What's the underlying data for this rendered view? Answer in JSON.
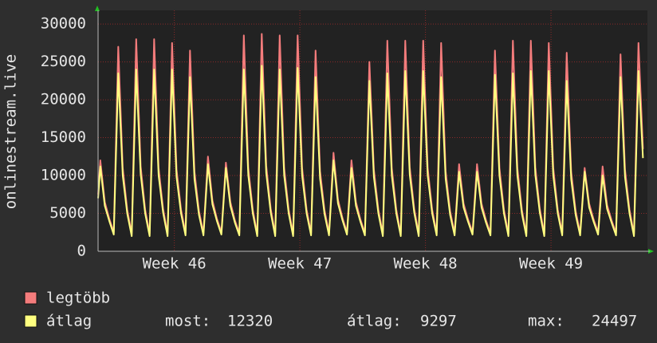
{
  "chart_data": {
    "type": "line",
    "y_label": "onlinestream.live",
    "x": [
      0,
      3,
      9,
      15,
      21,
      27,
      33,
      39,
      45,
      51,
      57,
      63,
      69,
      75,
      81,
      87,
      93,
      99,
      105,
      111,
      117,
      123,
      129,
      135,
      141,
      147,
      153,
      159,
      165,
      171,
      177,
      183,
      189,
      195,
      201,
      207,
      213,
      219,
      225,
      231,
      237,
      243,
      249,
      255,
      261,
      267,
      273,
      279,
      285,
      291,
      297,
      303,
      309,
      315,
      321,
      327,
      333,
      339,
      345,
      351,
      357,
      363,
      369,
      375,
      381,
      387,
      393,
      399,
      405,
      411,
      417,
      423,
      429,
      435,
      441,
      447,
      453,
      459,
      465,
      471,
      477,
      483,
      489,
      495,
      501,
      507,
      513,
      519,
      525,
      531,
      537,
      543,
      549,
      555,
      561,
      567,
      573,
      579,
      585,
      591,
      597,
      603,
      609,
      615,
      621,
      627,
      633,
      639,
      645,
      651,
      657,
      663,
      669,
      675,
      681,
      687,
      693,
      699,
      705,
      711,
      717,
      723,
      729
    ],
    "series": [
      {
        "name": "legtöbb",
        "color": "#f47c7c",
        "values": [
          7500,
          12000,
          6500,
          4300,
          2500,
          27000,
          11000,
          5500,
          2300,
          28000,
          11200,
          5500,
          2300,
          28000,
          11000,
          5600,
          2300,
          27500,
          10800,
          5500,
          2400,
          26500,
          10500,
          5300,
          2400,
          12500,
          6700,
          4300,
          2500,
          11700,
          6500,
          4100,
          2400,
          28500,
          11000,
          5500,
          2300,
          28700,
          11300,
          5600,
          2300,
          28500,
          11000,
          5500,
          2300,
          28500,
          11000,
          5500,
          2400,
          26500,
          10600,
          5400,
          2400,
          13000,
          6800,
          4400,
          2500,
          12000,
          6500,
          4200,
          2400,
          25000,
          10800,
          5500,
          2300,
          27800,
          11000,
          5500,
          2300,
          27800,
          11100,
          5600,
          2300,
          27800,
          11000,
          5500,
          2400,
          27500,
          10600,
          5300,
          2400,
          11500,
          6300,
          4200,
          2500,
          11500,
          6300,
          4100,
          2400,
          26500,
          11000,
          5500,
          2300,
          27800,
          11000,
          5500,
          2300,
          27800,
          11100,
          5600,
          2300,
          27500,
          11000,
          5500,
          2400,
          26200,
          10500,
          5300,
          2400,
          11000,
          6300,
          4200,
          2500,
          11200,
          6100,
          4100,
          2400,
          26000,
          10800,
          5500,
          2300,
          27500,
          13500
        ]
      },
      {
        "name": "átlag",
        "color": "#ffff80",
        "values": [
          7000,
          11200,
          6000,
          4000,
          2200,
          23500,
          10000,
          5000,
          2000,
          24000,
          10200,
          5000,
          2000,
          24000,
          10000,
          5100,
          2000,
          24000,
          9800,
          5000,
          2100,
          23000,
          9500,
          4800,
          2100,
          11500,
          6200,
          4000,
          2200,
          11000,
          6000,
          3800,
          2100,
          24000,
          10000,
          5000,
          2000,
          24500,
          10300,
          5100,
          2000,
          24000,
          10000,
          5000,
          2000,
          24200,
          10000,
          5000,
          2100,
          23000,
          9600,
          4900,
          2100,
          12000,
          6300,
          4100,
          2200,
          11000,
          6000,
          3900,
          2100,
          22500,
          9800,
          5000,
          2000,
          23500,
          10000,
          5000,
          2000,
          23800,
          10100,
          5100,
          2000,
          23800,
          10000,
          5000,
          2100,
          23000,
          9600,
          4800,
          2100,
          10500,
          5800,
          3900,
          2200,
          10500,
          5800,
          3800,
          2100,
          23300,
          10000,
          5000,
          2000,
          23500,
          10000,
          5000,
          2000,
          23800,
          10100,
          5100,
          2000,
          23800,
          10000,
          5000,
          2100,
          22500,
          9500,
          4800,
          2100,
          10500,
          5800,
          3900,
          2200,
          10000,
          5600,
          3800,
          2100,
          23000,
          9800,
          5000,
          2000,
          23800,
          12300
        ]
      }
    ],
    "xlim": [
      0,
      735
    ],
    "xticks": [
      {
        "value": 102,
        "label": "Week 46"
      },
      {
        "value": 270,
        "label": "Week 47"
      },
      {
        "value": 438,
        "label": "Week 48"
      },
      {
        "value": 606,
        "label": "Week 49"
      }
    ],
    "ylim": [
      0,
      31800
    ],
    "yticks": [
      0,
      5000,
      10000,
      15000,
      20000,
      25000,
      30000
    ],
    "grid": true,
    "stats": [
      {
        "label": "most:",
        "value": 12320
      },
      {
        "label": "átlag:",
        "value": 9297
      },
      {
        "label": "max:",
        "value": 24497
      }
    ]
  }
}
